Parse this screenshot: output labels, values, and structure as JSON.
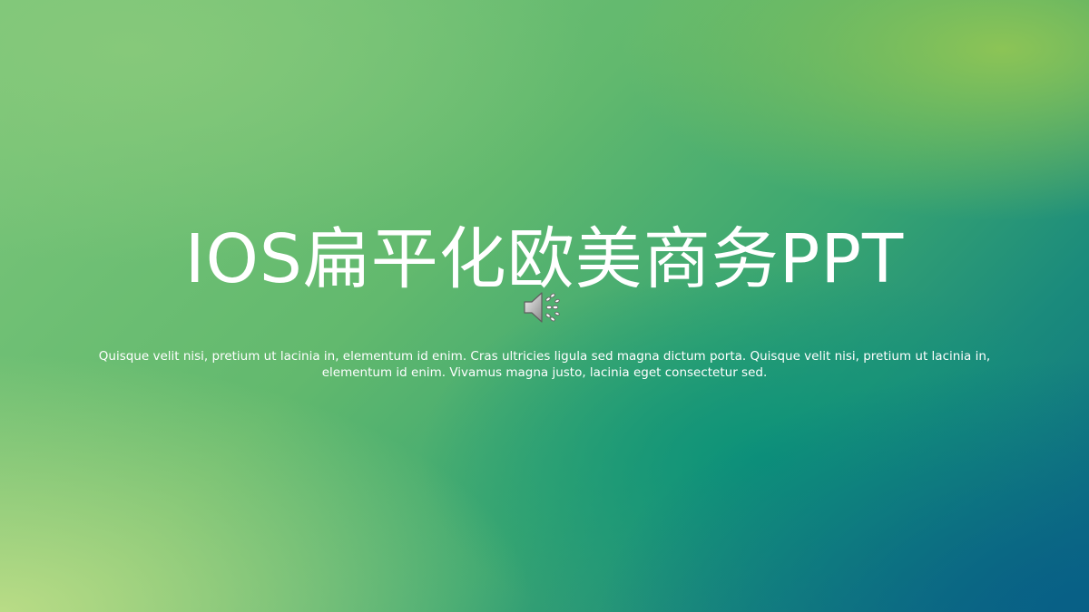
{
  "slide": {
    "title": "IOS扁平化欧美商务PPT",
    "subtitle": "Quisque velit nisi, pretium ut lacinia in, elementum id enim. Cras ultricies ligula sed magna dictum porta. Quisque velit nisi, pretium ut lacinia in, elementum id enim. Vivamus magna justo, lacinia eget consectetur sed.",
    "audio_icon": "speaker-icon",
    "colors": {
      "text": "#ffffff",
      "gradient_light": "#b9dc86",
      "gradient_mid": "#62b96e",
      "gradient_dark": "#085f86"
    }
  }
}
